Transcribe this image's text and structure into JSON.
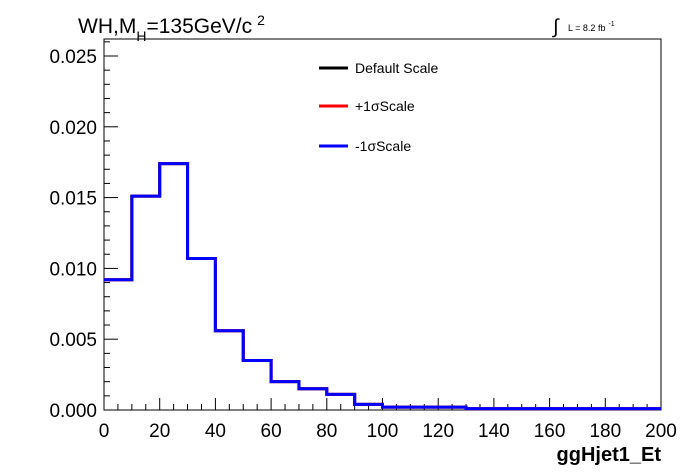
{
  "chart_data": {
    "type": "histogram",
    "title": {
      "prefix": "WH,M",
      "subscript": "H",
      "suffix": "=135GeV/c",
      "superscript": "2"
    },
    "luminosity": {
      "symbol": "∫",
      "text": "L = 8.2 fb",
      "superscript": "-1"
    },
    "xlabel": "ggHjet1_Et",
    "ylabel": "",
    "xlim": [
      0,
      200
    ],
    "ylim": [
      0,
      0.0262
    ],
    "x_ticks": [
      0,
      20,
      40,
      60,
      80,
      100,
      120,
      140,
      160,
      180,
      200
    ],
    "x_tick_labels": [
      "0",
      "20",
      "40",
      "60",
      "80",
      "100",
      "120",
      "140",
      "160",
      "180",
      "200"
    ],
    "y_ticks": [
      0,
      0.005,
      0.01,
      0.015,
      0.02,
      0.025
    ],
    "y_tick_labels": [
      "0.000",
      "0.005",
      "0.010",
      "0.015",
      "0.020",
      "0.025"
    ],
    "grid": false,
    "legend_position": "top-right",
    "bin_edges": [
      0,
      10,
      20,
      30,
      40,
      50,
      60,
      70,
      80,
      90,
      100,
      110,
      120,
      130,
      140,
      150,
      160,
      170,
      180,
      190,
      200
    ],
    "series": [
      {
        "name": "Default Scale",
        "color": "#000000",
        "values": [
          0.0092,
          0.0151,
          0.0174,
          0.0107,
          0.0056,
          0.0035,
          0.002,
          0.0015,
          0.0011,
          0.0004,
          0.0002,
          0.0002,
          0.0002,
          0.0001,
          0.0001,
          0.0001,
          0.0001,
          0.0001,
          0.0001,
          0.0001
        ]
      },
      {
        "name": "+1σScale",
        "color": "#ff0000",
        "values": [
          0.0092,
          0.0151,
          0.0174,
          0.0107,
          0.0056,
          0.0035,
          0.002,
          0.0015,
          0.0011,
          0.0004,
          0.0002,
          0.0002,
          0.0002,
          0.0001,
          0.0001,
          0.0001,
          0.0001,
          0.0001,
          0.0001,
          0.0001
        ]
      },
      {
        "name": "-1σScale",
        "color": "#0000ff",
        "values": [
          0.0092,
          0.0151,
          0.0174,
          0.0107,
          0.0056,
          0.0035,
          0.002,
          0.0015,
          0.0011,
          0.0004,
          0.0002,
          0.0002,
          0.0002,
          0.0001,
          0.0001,
          0.0001,
          0.0001,
          0.0001,
          0.0001,
          0.0001
        ]
      }
    ]
  }
}
